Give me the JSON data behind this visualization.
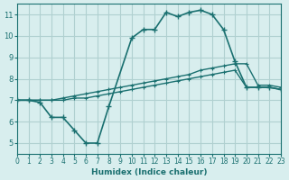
{
  "xlabel": "Humidex (Indice chaleur)",
  "bg_color": "#d8eeee",
  "grid_color": "#b0d0d0",
  "line_color": "#1a7070",
  "xlim": [
    0,
    23
  ],
  "ylim": [
    4.5,
    11.5
  ],
  "xticks": [
    0,
    1,
    2,
    3,
    4,
    5,
    6,
    7,
    8,
    9,
    10,
    11,
    12,
    13,
    14,
    15,
    16,
    17,
    18,
    19,
    20,
    21,
    22,
    23
  ],
  "yticks": [
    5,
    6,
    7,
    8,
    9,
    10,
    11
  ],
  "line1_x": [
    0,
    1,
    2,
    3,
    4,
    5,
    6,
    7,
    8,
    10,
    11,
    12,
    13,
    14,
    15,
    16,
    17,
    18,
    19,
    20,
    21,
    22,
    23
  ],
  "line1_y": [
    7.0,
    7.0,
    6.9,
    6.2,
    6.2,
    5.6,
    5.0,
    5.0,
    6.7,
    9.9,
    10.3,
    10.3,
    11.1,
    10.9,
    11.1,
    11.2,
    11.0,
    10.3,
    8.8,
    7.6,
    7.6,
    7.6,
    7.5
  ],
  "line2_x": [
    0,
    1,
    2,
    3,
    4,
    5,
    6,
    7,
    8,
    9,
    10,
    11,
    12,
    13,
    14,
    15,
    16,
    17,
    18,
    19,
    20,
    21,
    22,
    23
  ],
  "line2_y": [
    7.0,
    7.0,
    7.0,
    7.0,
    7.1,
    7.2,
    7.3,
    7.4,
    7.5,
    7.6,
    7.7,
    7.8,
    7.9,
    8.0,
    8.1,
    8.2,
    8.4,
    8.5,
    8.6,
    8.7,
    8.7,
    7.7,
    7.7,
    7.6
  ],
  "line3_x": [
    0,
    1,
    2,
    3,
    4,
    5,
    6,
    7,
    8,
    9,
    10,
    11,
    12,
    13,
    14,
    15,
    16,
    17,
    18,
    19,
    20,
    21,
    22,
    23
  ],
  "line3_y": [
    7.0,
    7.0,
    7.0,
    7.0,
    7.0,
    7.1,
    7.1,
    7.2,
    7.3,
    7.4,
    7.5,
    7.6,
    7.7,
    7.8,
    7.9,
    8.0,
    8.1,
    8.2,
    8.3,
    8.4,
    7.6,
    7.6,
    7.6,
    7.5
  ]
}
